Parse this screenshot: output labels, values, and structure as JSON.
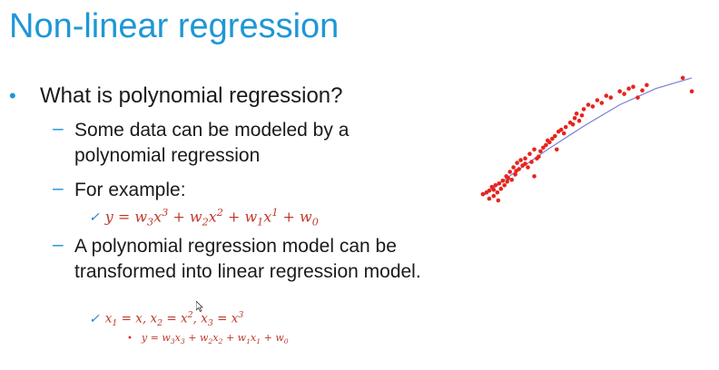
{
  "slide": {
    "title": "Non-linear regression",
    "bullets": {
      "main": "What is polynomial regression?",
      "sub": [
        "Some data can be modeled by a polynomial regression",
        "For example:",
        "A polynomial regression model can be transformed into linear regression model."
      ]
    },
    "equations": {
      "example": "y = w3x3 + w2x2 + w1x1 + w0",
      "substitution": "x1 = x, x2 = x2, x3 = x3",
      "linear_form": "y = w3x3 + w2x2 + w1x1 + w0"
    },
    "colors": {
      "title": "#1e97d6",
      "equation": "#c0392b",
      "point": "#e8231c",
      "curve": "#7a7fd6"
    }
  },
  "chart_data": {
    "type": "scatter",
    "title": "",
    "xlabel": "",
    "ylabel": "",
    "xlim": [
      0,
      240
    ],
    "ylim": [
      0,
      150
    ],
    "grid": false,
    "series": [
      {
        "x": [
          8,
          12,
          15,
          18,
          20,
          22,
          24,
          26,
          28,
          30,
          32,
          34,
          36,
          38,
          40,
          42,
          44,
          46,
          48,
          50,
          52,
          55,
          58,
          60,
          62,
          65,
          68,
          70,
          72,
          75,
          78,
          80,
          82,
          85,
          88,
          90,
          92,
          95,
          98,
          100,
          105,
          108,
          110,
          112,
          115,
          118,
          120,
          125,
          130,
          135,
          140,
          145,
          150,
          160,
          165,
          170,
          175,
          180,
          185,
          190,
          230,
          240,
          15,
          20,
          25,
          35,
          45,
          55,
          65
        ],
        "y": [
          10,
          12,
          14,
          18,
          15,
          20,
          12,
          22,
          16,
          25,
          20,
          30,
          28,
          35,
          26,
          40,
          32,
          45,
          38,
          48,
          42,
          50,
          40,
          55,
          46,
          60,
          50,
          52,
          58,
          62,
          65,
          70,
          68,
          72,
          75,
          60,
          80,
          82,
          78,
          85,
          90,
          88,
          95,
          100,
          92,
          98,
          105,
          110,
          108,
          115,
          112,
          120,
          118,
          125,
          122,
          128,
          130,
          118,
          126,
          132,
          140,
          125,
          5,
          8,
          3,
          24,
          36,
          44,
          30
        ]
      }
    ],
    "fit_curve": {
      "x": [
        8,
        40,
        80,
        120,
        160,
        200,
        240
      ],
      "y": [
        8,
        32,
        60,
        86,
        110,
        128,
        140
      ]
    }
  }
}
